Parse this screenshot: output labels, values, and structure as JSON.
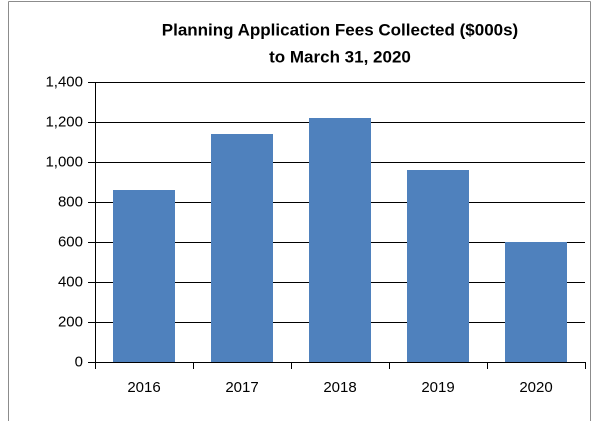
{
  "chart_data": {
    "type": "bar",
    "title": [
      "Planning Application Fees Collected ($000s)",
      "to March 31, 2020"
    ],
    "categories": [
      "2016",
      "2017",
      "2018",
      "2019",
      "2020"
    ],
    "values": [
      860,
      1140,
      1220,
      960,
      600
    ],
    "color": "#4f81bd",
    "ylim": [
      0,
      1400
    ],
    "yticks": [
      0,
      200,
      400,
      600,
      800,
      {
        "value": 1000,
        "label": "1,000"
      },
      {
        "value": 1200,
        "label": "1,200"
      },
      {
        "value": 1400,
        "label": "1,400"
      }
    ],
    "grid": true
  }
}
